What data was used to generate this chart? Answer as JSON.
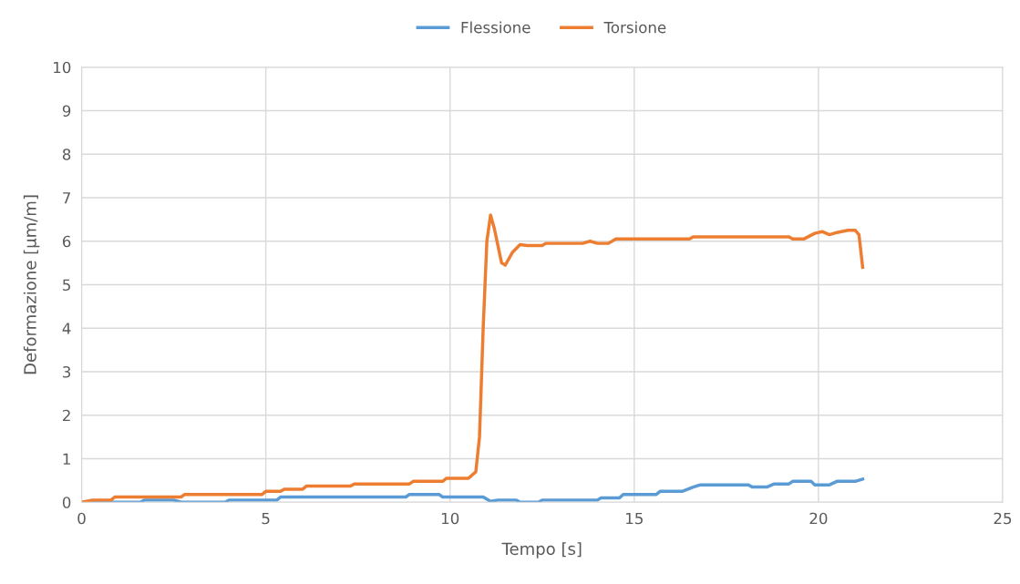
{
  "chart_data": {
    "type": "line",
    "xlabel": "Tempo [s]",
    "ylabel": "Deformazione [µm/m]",
    "xlim": [
      0,
      25
    ],
    "xticks": [
      0,
      5,
      10,
      15,
      20,
      25
    ],
    "ylim": [
      0,
      10
    ],
    "yticks": [
      0,
      1,
      2,
      3,
      4,
      5,
      6,
      7,
      8,
      9,
      10
    ],
    "grid": true,
    "legend": "top",
    "marker": "none",
    "line_style": "solid",
    "series": [
      {
        "name": "Flessione",
        "color": "#5b9bd5",
        "x": [
          0,
          1.6,
          1.7,
          2.5,
          2.7,
          3.9,
          4.0,
          5.3,
          5.4,
          8.8,
          8.9,
          9.7,
          9.8,
          10.9,
          11.1,
          11.3,
          11.8,
          11.9,
          12.4,
          12.5,
          14.0,
          14.1,
          14.6,
          14.7,
          15.6,
          15.7,
          16.3,
          16.6,
          16.8,
          18.1,
          18.2,
          18.6,
          18.8,
          19.2,
          19.3,
          19.8,
          19.9,
          20.3,
          20.5,
          21.0,
          21.2
        ],
        "values": [
          0,
          0,
          0.05,
          0.05,
          0,
          0,
          0.05,
          0.05,
          0.12,
          0.12,
          0.18,
          0.18,
          0.12,
          0.12,
          0.02,
          0.05,
          0.05,
          0,
          0,
          0.05,
          0.05,
          0.1,
          0.1,
          0.18,
          0.18,
          0.25,
          0.25,
          0.35,
          0.4,
          0.4,
          0.35,
          0.35,
          0.42,
          0.42,
          0.48,
          0.48,
          0.4,
          0.4,
          0.48,
          0.48,
          0.53
        ]
      },
      {
        "name": "Torsione",
        "color": "#ed7d31",
        "x": [
          0,
          0.3,
          0.8,
          0.9,
          2.7,
          2.8,
          4.9,
          5.0,
          5.4,
          5.5,
          6.0,
          6.1,
          7.3,
          7.4,
          8.9,
          9.0,
          9.8,
          9.9,
          10.5,
          10.7,
          10.8,
          10.9,
          11.0,
          11.1,
          11.2,
          11.4,
          11.5,
          11.7,
          11.9,
          12.1,
          12.5,
          12.6,
          13.6,
          13.8,
          14.0,
          14.3,
          14.5,
          16.5,
          16.6,
          19.2,
          19.3,
          19.6,
          19.9,
          20.1,
          20.3,
          20.5,
          20.8,
          21.0,
          21.1,
          21.2
        ],
        "values": [
          0,
          0.05,
          0.05,
          0.12,
          0.12,
          0.18,
          0.18,
          0.25,
          0.25,
          0.3,
          0.3,
          0.37,
          0.37,
          0.42,
          0.42,
          0.48,
          0.48,
          0.55,
          0.55,
          0.7,
          1.5,
          4,
          6.0,
          6.6,
          6.3,
          5.5,
          5.45,
          5.75,
          5.92,
          5.9,
          5.9,
          5.95,
          5.95,
          6.0,
          5.95,
          5.95,
          6.05,
          6.05,
          6.1,
          6.1,
          6.05,
          6.05,
          6.18,
          6.22,
          6.15,
          6.2,
          6.25,
          6.25,
          6.15,
          5.4
        ]
      }
    ]
  }
}
